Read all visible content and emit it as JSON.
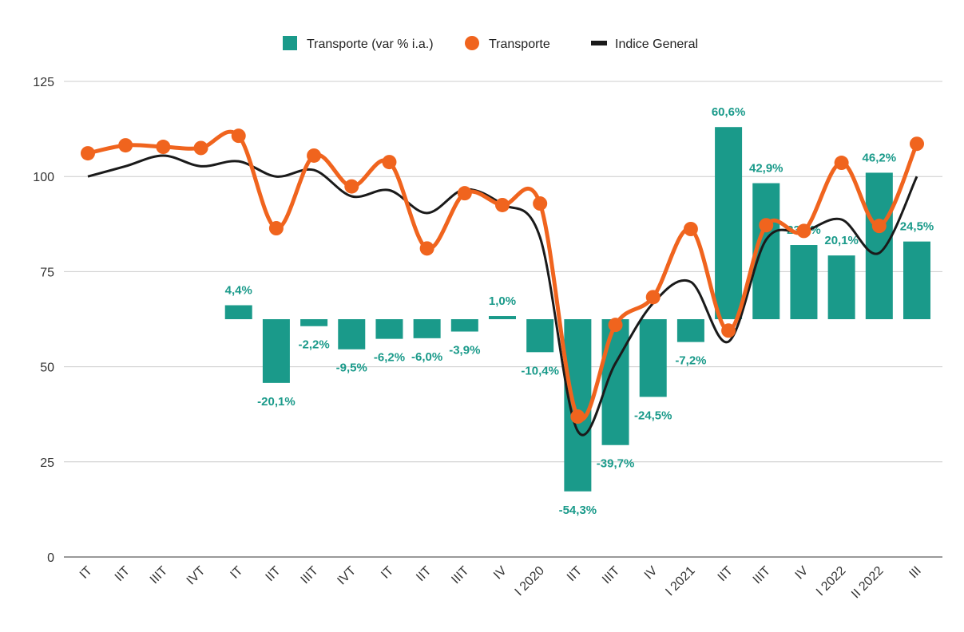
{
  "chart_data": {
    "type": "combo",
    "categories": [
      "IT",
      "IIT",
      "IIIT",
      "IVT",
      "IT",
      "IIT",
      "IIIT",
      "IVT",
      "IT",
      "IIT",
      "IIIT",
      "IV",
      "I 2020",
      "IIT",
      "IIIT",
      "IV",
      "I 2021",
      "IIT",
      "IIIT",
      "IV",
      "I 2022",
      "II 2022",
      "III"
    ],
    "ylim": [
      0,
      125
    ],
    "yticks": [
      0,
      25,
      50,
      75,
      100,
      125
    ],
    "grid": true,
    "y2lim": [
      -75,
      75
    ],
    "legend": "top",
    "series": [
      {
        "name": "Transporte (var % i.a.)",
        "type": "bar",
        "axis": "y2",
        "color": "#1a9a8a",
        "values": [
          null,
          null,
          null,
          null,
          4.4,
          -20.1,
          -2.2,
          -9.5,
          -6.2,
          -6.0,
          -3.9,
          1.0,
          -10.4,
          -54.3,
          -39.7,
          -24.5,
          -7.2,
          60.6,
          42.9,
          23.4,
          20.1,
          46.2,
          24.5
        ],
        "value_labels": [
          null,
          null,
          null,
          null,
          "4,4%",
          "-20,1%",
          "-2,2%",
          "-9,5%",
          "-6,2%",
          "-6,0%",
          "-3,9%",
          "1,0%",
          "-10,4%",
          "-54,3%",
          "-39,7%",
          "-24,5%",
          "-7,2%",
          "60,6%",
          "42,9%",
          "23,4%",
          "20,1%",
          "46,2%",
          "24,5%"
        ]
      },
      {
        "name": "Transporte",
        "type": "line",
        "markers": true,
        "color": "#f0641e",
        "values": [
          106.1,
          108.2,
          107.8,
          107.5,
          110.7,
          86.4,
          105.5,
          97.4,
          103.8,
          81.1,
          95.6,
          92.5,
          92.9,
          36.9,
          61.0,
          68.3,
          86.2,
          59.5,
          87.2,
          85.7,
          103.6,
          87.0,
          108.6
        ]
      },
      {
        "name": "Indice General",
        "type": "line",
        "markers": false,
        "color": "#1a1a1a",
        "values": [
          100,
          102.7,
          105.5,
          102.7,
          104,
          100,
          101.7,
          94.8,
          96.4,
          90.4,
          96.6,
          92.7,
          84,
          33.1,
          50.9,
          66.7,
          72.3,
          56.6,
          83.4,
          85.5,
          88.7,
          79.9,
          100
        ]
      }
    ]
  }
}
